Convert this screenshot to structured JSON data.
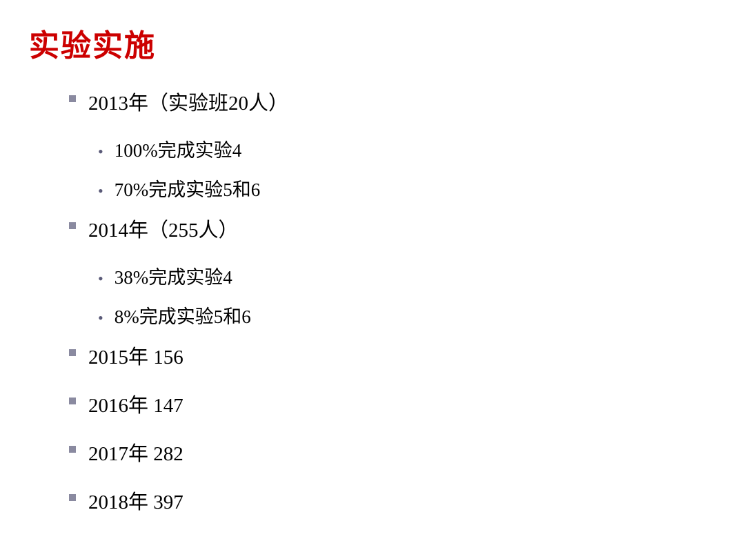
{
  "title": "实验实施",
  "colors": {
    "title_color": "#cc0000",
    "text_color": "#000000",
    "square_bullet_color": "#8a8aa0",
    "dot_bullet_color": "#5a5a78",
    "background_color": "#ffffff"
  },
  "typography": {
    "title_fontsize": 44,
    "level1_fontsize": 29,
    "level2_fontsize": 27,
    "font_family": "SimSun"
  },
  "items": [
    {
      "text": "2013年（实验班20人）",
      "subitems": [
        "100%完成实验4",
        "70%完成实验5和6"
      ]
    },
    {
      "text": "2014年（255人）",
      "subitems": [
        "38%完成实验4",
        "8%完成实验5和6"
      ]
    },
    {
      "text": "2015年 156",
      "subitems": []
    },
    {
      "text": "2016年 147",
      "subitems": []
    },
    {
      "text": "2017年 282",
      "subitems": []
    },
    {
      "text": "2018年 397",
      "subitems": []
    }
  ]
}
